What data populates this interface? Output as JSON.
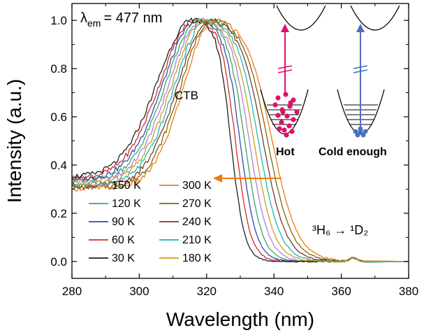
{
  "chart_data": {
    "type": "line",
    "title": "",
    "xlabel": "Wavelength (nm)",
    "ylabel": "Intensity (a.u.)",
    "xlim": [
      280,
      380
    ],
    "ylim": [
      -0.07,
      1.07
    ],
    "x_ticks": [
      280,
      300,
      320,
      340,
      360,
      380
    ],
    "y_ticks": [
      0.0,
      0.2,
      0.4,
      0.6,
      0.8,
      1.0
    ],
    "x_tick_labels": [
      "280",
      "300",
      "320",
      "340",
      "360",
      "380"
    ],
    "y_tick_labels": [
      "0.0",
      "0.2",
      "0.4",
      "0.6",
      "0.8",
      "1.0"
    ],
    "grid": false,
    "legend_position": "bottom-left",
    "annotations": {
      "lambda_em_symbol": "λ",
      "lambda_em_sub": "em",
      "lambda_em_value": "= 477 nm",
      "ctb": "CTB",
      "hot": "Hot",
      "cold": "Cold enough",
      "transition": "³H₆ → ¹D₂"
    },
    "colors": {
      "hot": "#e0106a",
      "cold": "#4a6fc0",
      "arrow": "#f07a10"
    },
    "series": [
      {
        "name": "150 K",
        "color": "#b07fd8",
        "temp": 150
      },
      {
        "name": "120 K",
        "color": "#3aa860",
        "temp": 120
      },
      {
        "name": "90 K",
        "color": "#2a4fa8",
        "temp": 90
      },
      {
        "name": "60 K",
        "color": "#d42a2a",
        "temp": 60
      },
      {
        "name": "30 K",
        "color": "#202020",
        "temp": 30
      },
      {
        "name": "300 K",
        "color": "#f07a10",
        "temp": 300
      },
      {
        "name": "270 K",
        "color": "#7a6a10",
        "temp": 270
      },
      {
        "name": "240 K",
        "color": "#7a3a2a",
        "temp": 240
      },
      {
        "name": "210 K",
        "color": "#18b8b0",
        "temp": 210
      },
      {
        "name": "180 K",
        "color": "#d09a20",
        "temp": 180
      }
    ]
  }
}
